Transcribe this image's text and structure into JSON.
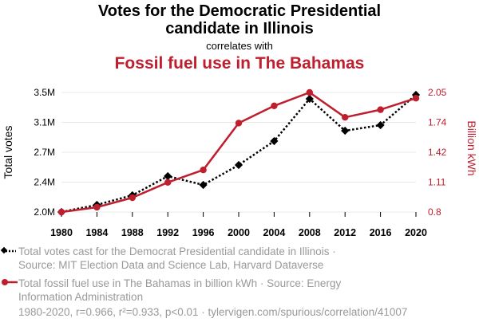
{
  "header": {
    "title_line1": "Votes for the Democratic Presidential",
    "title_line2": "candidate in Illinois",
    "correlates": "correlates with",
    "title2": "Fossil fuel use in The Bahamas"
  },
  "legend": {
    "series1_line1": "Total votes cast for the Democrat Presidential candidate in Illinois ·",
    "series1_line2": "Source: MIT Election Data and Science Lab, Harvard Dataverse",
    "series2_line1": "Total fossil fuel use in The Bahamas in billion kWh · Source: Energy",
    "series2_line2": "Information Administration"
  },
  "footer": "1980-2020, r=0.966, r²=0.933, p<0.01 · tylervigen.com/spurious/correlation/41007",
  "colors": {
    "votes": "#000000",
    "fuel": "#bf1e2e"
  },
  "chart_data": {
    "type": "line",
    "x": [
      1980,
      1984,
      1988,
      1992,
      1996,
      2000,
      2004,
      2008,
      2012,
      2016,
      2020
    ],
    "xlabel": "",
    "series": [
      {
        "name": "Total votes",
        "axis": "left",
        "style": "dotted",
        "marker": "diamond",
        "values": [
          2.0,
          2.09,
          2.21,
          2.45,
          2.34,
          2.59,
          2.89,
          3.42,
          3.02,
          3.09,
          3.47
        ]
      },
      {
        "name": "Billion kWh",
        "axis": "right",
        "style": "solid",
        "marker": "circle",
        "values": [
          0.8,
          0.85,
          0.95,
          1.11,
          1.24,
          1.73,
          1.91,
          2.05,
          1.79,
          1.87,
          1.99
        ]
      }
    ],
    "left_axis": {
      "label": "Total votes",
      "range": [
        2.0,
        3.5
      ],
      "ticks": [
        {
          "v": 2.0,
          "label": "2.0M"
        },
        {
          "v": 2.375,
          "label": "2.4M"
        },
        {
          "v": 2.75,
          "label": "2.7M"
        },
        {
          "v": 3.125,
          "label": "3.1M"
        },
        {
          "v": 3.5,
          "label": "3.5M"
        }
      ]
    },
    "right_axis": {
      "label": "Billion kWh",
      "range": [
        0.8,
        2.05
      ],
      "ticks": [
        {
          "v": 0.8,
          "label": "0.8"
        },
        {
          "v": 1.1125,
          "label": "1.11"
        },
        {
          "v": 1.425,
          "label": "1.42"
        },
        {
          "v": 1.7375,
          "label": "1.74"
        },
        {
          "v": 2.05,
          "label": "2.05"
        }
      ]
    }
  }
}
